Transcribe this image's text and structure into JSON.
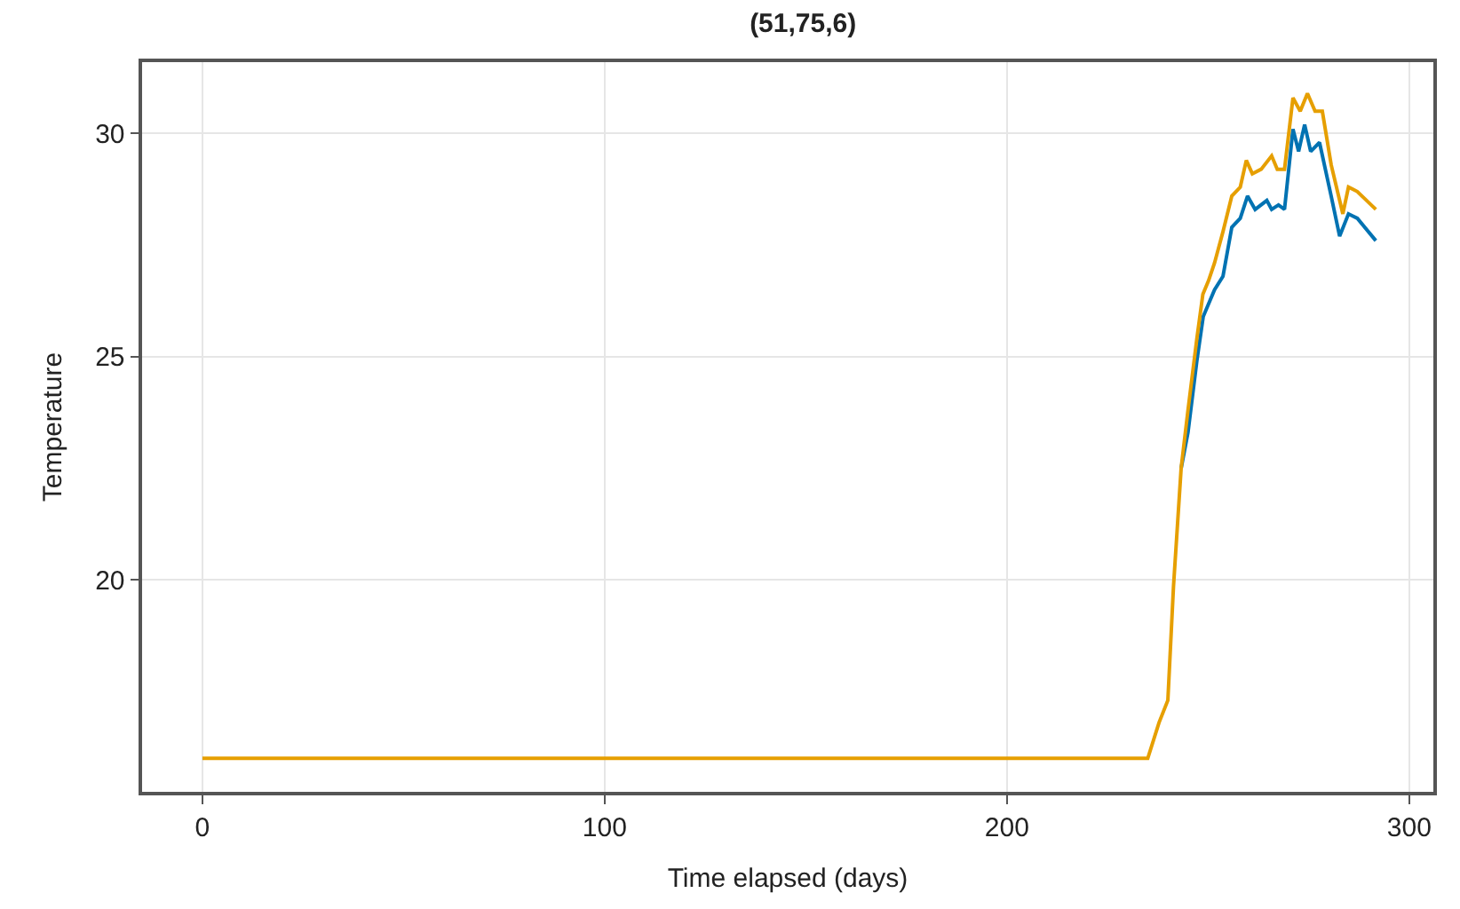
{
  "chart_data": {
    "type": "line",
    "title": "(51,75,6)",
    "xlabel": "Time elapsed (days)",
    "ylabel": "Temperature",
    "xlim": [
      -15,
      306
    ],
    "xticks": [
      0,
      100,
      200,
      300
    ],
    "ylim": [
      15.25,
      31.6
    ],
    "yticks": [
      20,
      25,
      30
    ],
    "grid": true,
    "marker": "none",
    "line_style": "solid",
    "series": [
      {
        "color": "#0072b2",
        "x": [
          243.3,
          245,
          247.2,
          248.8,
          251.6,
          253.7,
          255.9,
          258,
          259.8,
          261.7,
          264.6,
          265.8,
          267.5,
          269,
          271.1,
          272.5,
          274,
          275.5,
          277.7,
          280.6,
          282.7,
          284.9,
          287.1,
          291.7
        ],
        "values": [
          22.5,
          23.3,
          24.9,
          25.9,
          26.5,
          26.8,
          27.9,
          28.1,
          28.6,
          28.3,
          28.5,
          28.3,
          28.4,
          28.3,
          30.1,
          29.6,
          30.2,
          29.6,
          29.8,
          28.6,
          27.7,
          28.2,
          28.1,
          27.6
        ]
      },
      {
        "color": "#e69f00",
        "x": [
          0,
          235,
          237.8,
          240,
          241.4,
          243.3,
          245,
          247.2,
          248.7,
          250.1,
          251.6,
          253.7,
          255.9,
          258,
          259.5,
          261,
          263.2,
          265.8,
          267.2,
          269,
          271.1,
          272.9,
          274.7,
          276.6,
          278.4,
          280.6,
          283.5,
          284.9,
          287.1,
          291.7
        ],
        "values": [
          16.0,
          16.0,
          16.8,
          17.3,
          19.85,
          22.5,
          23.8,
          25.4,
          26.4,
          26.7,
          27.1,
          27.8,
          28.6,
          28.8,
          29.4,
          29.1,
          29.2,
          29.5,
          29.2,
          29.2,
          30.8,
          30.5,
          30.9,
          30.5,
          30.5,
          29.3,
          28.2,
          28.8,
          28.7,
          28.3
        ]
      }
    ]
  }
}
